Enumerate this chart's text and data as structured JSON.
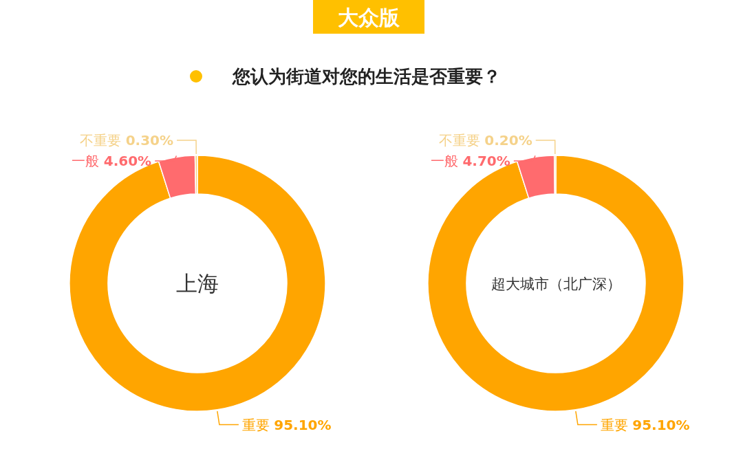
{
  "chart_data": [
    {
      "type": "donut",
      "title": "上海",
      "categories": [
        "重要",
        "一般",
        "不重要"
      ],
      "values": [
        95.1,
        4.6,
        0.3
      ],
      "value_labels": [
        "95.10%",
        "4.60%",
        "0.30%"
      ],
      "colors": [
        "#FFA500",
        "#FF6B6E",
        "#F5D28A"
      ],
      "annotations": [
        "大众版",
        "您认为街道对您的生活是否重要？"
      ]
    },
    {
      "type": "donut",
      "title": "超大城市（北广深）",
      "categories": [
        "重要",
        "一般",
        "不重要"
      ],
      "values": [
        95.1,
        4.7,
        0.2
      ],
      "value_labels": [
        "95.10%",
        "4.70%",
        "0.20%"
      ],
      "colors": [
        "#FFA500",
        "#FF6B6E",
        "#F5D28A"
      ]
    }
  ]
}
